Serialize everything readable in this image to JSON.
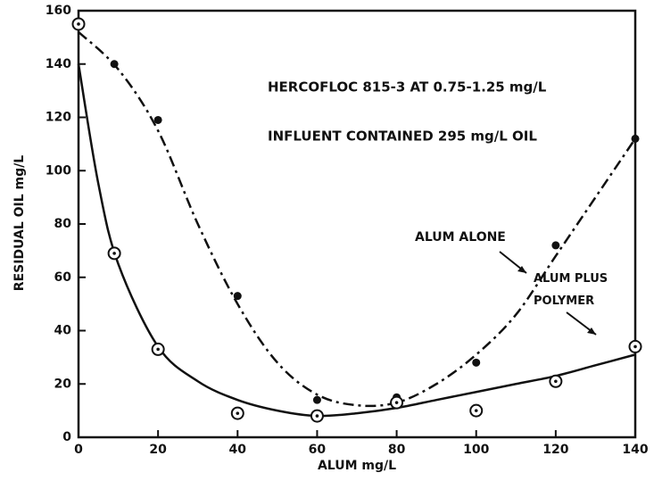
{
  "chart_data": {
    "type": "scatter",
    "xlabel": "ALUM  mg/L",
    "ylabel": "RESIDUAL OIL  mg/L",
    "annotations": [
      "HERCOFLOC 815-3 AT 0.75-1.25 mg/L",
      "INFLUENT CONTAINED 295 mg/L OIL"
    ],
    "xlim": [
      0,
      140
    ],
    "xticks": [
      0,
      20,
      40,
      60,
      80,
      100,
      120,
      140
    ],
    "ylim": [
      0,
      160
    ],
    "yticks": [
      0,
      20,
      40,
      60,
      80,
      100,
      120,
      140,
      160
    ],
    "series": [
      {
        "name": "ALUM ALONE",
        "color": "#111111",
        "marker": "filled",
        "line": "dashdot",
        "x": [
          9,
          20,
          40,
          60,
          80,
          100,
          120,
          140
        ],
        "values": [
          140,
          119,
          53,
          14,
          15,
          28,
          72,
          112
        ],
        "fit_x": [
          0,
          10,
          20,
          30,
          40,
          50,
          60,
          70,
          80,
          90,
          100,
          110,
          120,
          130,
          140
        ],
        "fit_values": [
          152,
          138,
          115,
          80,
          50,
          28,
          16,
          12,
          13,
          20,
          31,
          46,
          68,
          90,
          112
        ]
      },
      {
        "name": "ALUM PLUS POLYMER",
        "color": "#111111",
        "marker": "open",
        "line": "solid",
        "x": [
          0,
          9,
          20,
          40,
          60,
          80,
          100,
          120,
          140
        ],
        "values": [
          155,
          69,
          33,
          9,
          8,
          13,
          10,
          21,
          34
        ],
        "fit_x": [
          0,
          5,
          10,
          20,
          30,
          40,
          50,
          60,
          70,
          80,
          90,
          100,
          110,
          120,
          130,
          140
        ],
        "fit_values": [
          140,
          95,
          65,
          34,
          21,
          14,
          10,
          8,
          9,
          11,
          14,
          17,
          20,
          23,
          27,
          31
        ]
      }
    ]
  }
}
